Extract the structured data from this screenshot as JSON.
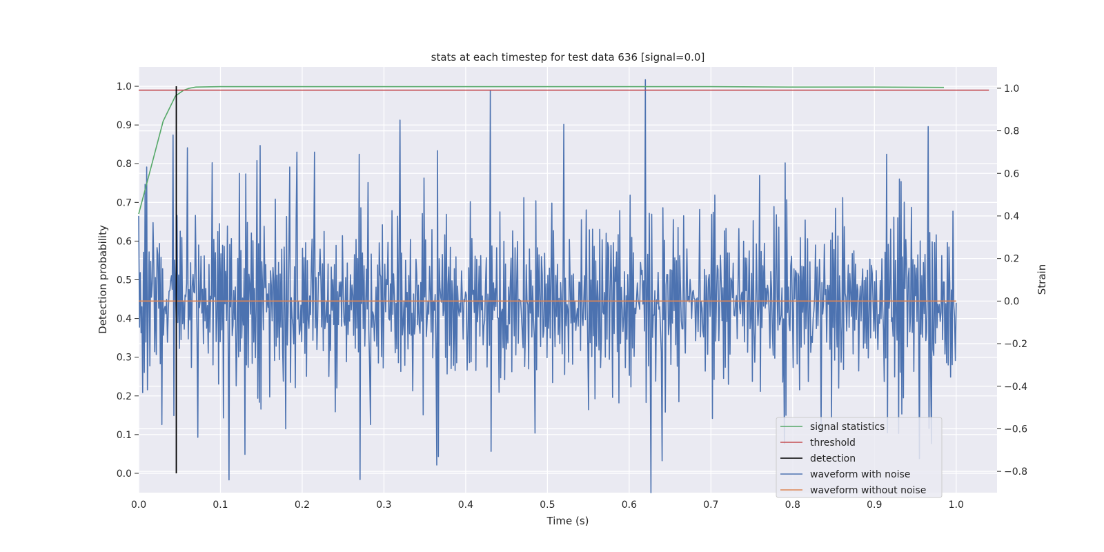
{
  "chart_data": {
    "type": "line",
    "title": "stats at each timestep for test data 636 [signal=0.0]",
    "xlabel": "Time (s)",
    "ylabel_left": "Detection probability",
    "ylabel_right": "Strain",
    "xlim": [
      0.0,
      1.05
    ],
    "ylim_left": [
      -0.05,
      1.05
    ],
    "ylim_right": [
      -0.9,
      1.1
    ],
    "x_ticks": [
      "0.0",
      "0.1",
      "0.2",
      "0.3",
      "0.4",
      "0.5",
      "0.6",
      "0.7",
      "0.8",
      "0.9",
      "1.0"
    ],
    "y_left_ticks": [
      "0.0",
      "0.1",
      "0.2",
      "0.3",
      "0.4",
      "0.5",
      "0.6",
      "0.7",
      "0.8",
      "0.9",
      "1.0"
    ],
    "y_right_ticks": [
      "−0.8",
      "−0.6",
      "−0.4",
      "−0.2",
      "0.0",
      "0.2",
      "0.4",
      "0.6",
      "0.8",
      "1.0"
    ],
    "grid": true,
    "legend_position": "lower-right",
    "series": [
      {
        "name": "signal statistics",
        "axis": "left",
        "color": "#55a868",
        "x": [
          0.0,
          0.015,
          0.03,
          0.045,
          0.055,
          0.062,
          0.07,
          0.1,
          0.3,
          0.5,
          0.7,
          0.8,
          0.9,
          0.985
        ],
        "values": [
          0.67,
          0.79,
          0.91,
          0.975,
          0.99,
          0.995,
          0.998,
          0.999,
          0.999,
          0.999,
          0.999,
          0.998,
          0.998,
          0.997
        ]
      },
      {
        "name": "threshold",
        "axis": "left",
        "color": "#c44e52",
        "x": [
          0.0,
          1.04
        ],
        "values": [
          0.99,
          0.99
        ]
      },
      {
        "name": "detection",
        "axis": "left",
        "color": "#000000",
        "x": [
          0.046,
          0.046
        ],
        "values": [
          0.0,
          1.0
        ]
      },
      {
        "name": "waveform with noise",
        "axis": "right",
        "color": "#4c72b0",
        "x_range": [
          0.0,
          1.0
        ],
        "peaks": [
          [
            0.0,
            0.4
          ],
          [
            0.005,
            -0.43
          ],
          [
            0.01,
            0.63
          ],
          [
            0.028,
            -0.58
          ],
          [
            0.042,
            0.78
          ],
          [
            0.06,
            0.72
          ],
          [
            0.072,
            -0.64
          ],
          [
            0.09,
            0.65
          ],
          [
            0.11,
            -0.84
          ],
          [
            0.123,
            0.6
          ],
          [
            0.13,
            -0.72
          ],
          [
            0.145,
            0.66
          ],
          [
            0.18,
            -0.6
          ],
          [
            0.185,
            0.63
          ],
          [
            0.194,
            0.7
          ],
          [
            0.215,
            0.7
          ],
          [
            0.24,
            -0.52
          ],
          [
            0.27,
            0.69
          ],
          [
            0.283,
            -0.58
          ],
          [
            0.32,
            0.85
          ],
          [
            0.365,
            -0.77
          ],
          [
            0.43,
            0.99
          ],
          [
            0.485,
            -0.62
          ],
          [
            0.52,
            0.83
          ],
          [
            0.55,
            -0.51
          ],
          [
            0.62,
            1.04
          ],
          [
            0.627,
            -0.9
          ],
          [
            0.64,
            -0.75
          ],
          [
            0.76,
            0.59
          ],
          [
            0.79,
            -0.67
          ],
          [
            0.835,
            -0.61
          ],
          [
            0.915,
            0.69
          ],
          [
            0.955,
            -0.74
          ],
          [
            0.966,
            0.82
          ],
          [
            0.97,
            -0.67
          ],
          [
            0.99,
            -0.3
          ]
        ],
        "amplitude_typical": 0.3
      },
      {
        "name": "waveform without noise",
        "axis": "right",
        "color": "#dd8452",
        "x": [
          0.0,
          1.0
        ],
        "values": [
          0.0,
          0.0
        ]
      }
    ]
  }
}
